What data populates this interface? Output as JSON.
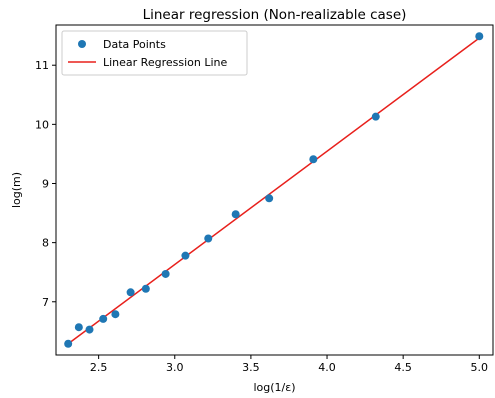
{
  "chart_data": {
    "type": "scatter",
    "title": "Linear regression (Non-realizable case)",
    "xlabel": "log(1/ε)",
    "ylabel": "log(m)",
    "xlim": [
      2.22,
      5.09
    ],
    "ylim": [
      6.1,
      11.68
    ],
    "x_ticks": [
      2.5,
      3.0,
      3.5,
      4.0,
      4.5,
      5.0
    ],
    "x_tick_labels": [
      "2.5",
      "3.0",
      "3.5",
      "4.0",
      "4.5",
      "5.0"
    ],
    "y_ticks": [
      7,
      8,
      9,
      10,
      11
    ],
    "y_tick_labels": [
      "7",
      "8",
      "9",
      "10",
      "11"
    ],
    "grid": false,
    "legend_position": "top-left",
    "series": [
      {
        "name": "Data Points",
        "kind": "scatter",
        "color": "#1f77b4",
        "x": [
          2.3,
          2.37,
          2.44,
          2.53,
          2.61,
          2.71,
          2.81,
          2.94,
          3.07,
          3.22,
          3.4,
          3.62,
          3.91,
          4.32,
          5.0
        ],
        "y": [
          6.29,
          6.57,
          6.53,
          6.71,
          6.79,
          7.16,
          7.22,
          7.47,
          7.78,
          8.07,
          8.48,
          8.75,
          9.41,
          10.13,
          11.49
        ]
      },
      {
        "name": "Linear Regression Line",
        "kind": "line",
        "color": "#e8201c",
        "x": [
          2.3,
          5.0
        ],
        "y": [
          6.29,
          11.46
        ]
      }
    ]
  }
}
